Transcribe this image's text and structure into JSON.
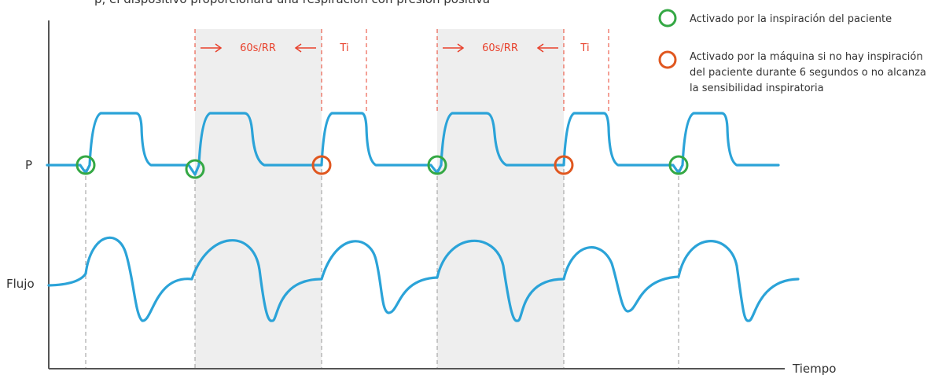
{
  "axes": {
    "pressure_label": "P",
    "flow_label": "Flujo",
    "time_label": "Tiempo"
  },
  "top_clip_text": "p, el dispositivo proporcionará una respiración con presión positiva",
  "intervals": [
    {
      "rate_label": "60s/RR",
      "ti_label": "Ti"
    },
    {
      "rate_label": "60s/RR",
      "ti_label": "Ti"
    }
  ],
  "legend": {
    "patient_label": "Activado por la inspiración del paciente",
    "machine_label_lines": [
      "Activado por la máquina si no hay inspiración",
      "del paciente durante 6 segundos o no alcanza",
      "la sensibilidad inspiratoria"
    ]
  },
  "breaths": [
    {
      "trigger": "patient"
    },
    {
      "trigger": "patient"
    },
    {
      "trigger": "machine"
    },
    {
      "trigger": "patient"
    },
    {
      "trigger": "machine"
    },
    {
      "trigger": "patient"
    }
  ],
  "colors": {
    "wave": "#2ba3d8",
    "patient": "#34a844",
    "machine": "#e0571f",
    "annotation": "#e8412c",
    "shade": "#eeeeee"
  }
}
